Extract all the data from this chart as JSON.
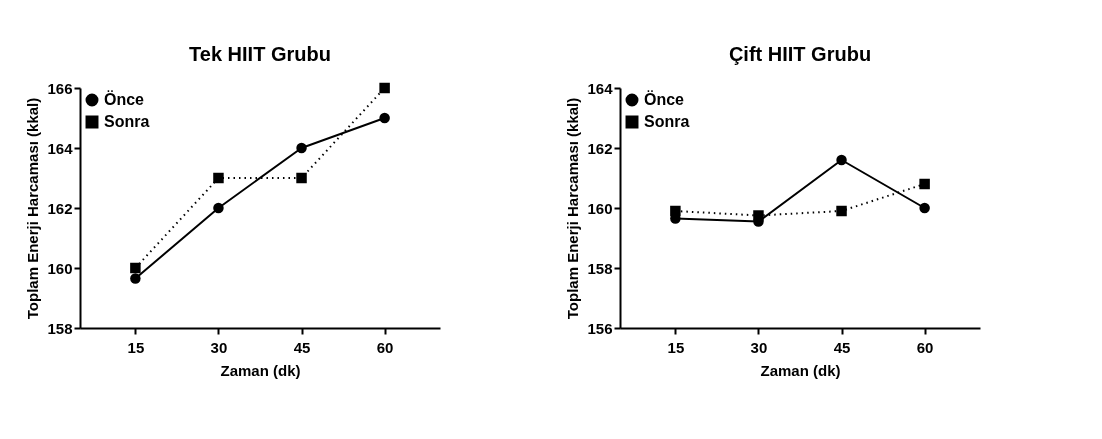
{
  "chart_data": [
    {
      "type": "line",
      "title": "Tek HIIT Grubu",
      "xlabel": "Zaman (dk)",
      "ylabel": "Toplam Enerji Harcaması (kkal)",
      "x": [
        15,
        30,
        45,
        60
      ],
      "xlim": [
        5,
        70
      ],
      "xticks": [
        15,
        30,
        45,
        60
      ],
      "ylim": [
        158,
        166
      ],
      "yticks": [
        158,
        160,
        162,
        164,
        166
      ],
      "grid": false,
      "legend": "top left",
      "series": [
        {
          "name": "Önce",
          "color": "#000000",
          "values": [
            159.65,
            162,
            164,
            165
          ],
          "marker": "circle",
          "line_style": "solid"
        },
        {
          "name": "Sonra",
          "color": "#000000",
          "values": [
            160,
            163,
            163,
            166
          ],
          "marker": "square",
          "line_style": "dotted"
        }
      ]
    },
    {
      "type": "line",
      "title": "Çift HIIT Grubu",
      "xlabel": "Zaman (dk)",
      "ylabel": "Toplam Enerji Harcaması (kkal)",
      "x": [
        15,
        30,
        45,
        60
      ],
      "xlim": [
        5,
        70
      ],
      "xticks": [
        15,
        30,
        45,
        60
      ],
      "ylim": [
        156,
        164
      ],
      "yticks": [
        156,
        158,
        160,
        162,
        164
      ],
      "grid": false,
      "legend": "top left",
      "series": [
        {
          "name": "Önce",
          "color": "#000000",
          "values": [
            159.65,
            159.55,
            161.6,
            160
          ],
          "marker": "circle",
          "line_style": "solid"
        },
        {
          "name": "Sonra",
          "color": "#000000",
          "values": [
            159.9,
            159.75,
            159.9,
            160.8
          ],
          "marker": "square",
          "line_style": "dotted"
        }
      ]
    }
  ]
}
